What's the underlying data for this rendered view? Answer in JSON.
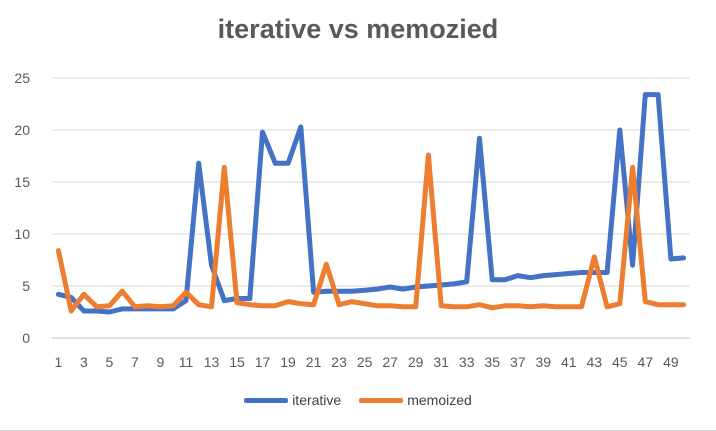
{
  "chart_data": {
    "type": "line",
    "title": "iterative vs memozied",
    "xlabel": "",
    "ylabel": "",
    "ylim": [
      0,
      25
    ],
    "yticks": [
      "0",
      "5",
      "10",
      "15",
      "20",
      "25"
    ],
    "xtick_labels": [
      "1",
      "3",
      "5",
      "7",
      "9",
      "11",
      "13",
      "15",
      "17",
      "19",
      "21",
      "23",
      "25",
      "27",
      "29",
      "31",
      "33",
      "35",
      "37",
      "39",
      "41",
      "43",
      "45",
      "47",
      "49"
    ],
    "grid": true,
    "legend_position": "bottom",
    "x": [
      1,
      2,
      3,
      4,
      5,
      6,
      7,
      8,
      9,
      10,
      11,
      12,
      13,
      14,
      15,
      16,
      17,
      18,
      19,
      20,
      21,
      22,
      23,
      24,
      25,
      26,
      27,
      28,
      29,
      30,
      31,
      32,
      33,
      34,
      35,
      36,
      37,
      38,
      39,
      40,
      41,
      42,
      43,
      44,
      45,
      46,
      47,
      48,
      49,
      50
    ],
    "series": [
      {
        "name": "iterative",
        "color": "#4472c4",
        "values": [
          4.2,
          3.9,
          2.6,
          2.6,
          2.5,
          2.8,
          2.8,
          2.8,
          2.8,
          2.8,
          3.6,
          16.8,
          7.0,
          3.6,
          3.8,
          3.8,
          19.8,
          16.8,
          16.8,
          20.3,
          4.4,
          4.5,
          4.5,
          4.5,
          4.6,
          4.7,
          4.9,
          4.7,
          4.9,
          5.0,
          5.1,
          5.2,
          5.4,
          19.2,
          5.6,
          5.6,
          6.0,
          5.8,
          6.0,
          6.1,
          6.2,
          6.3,
          6.3,
          6.3,
          20.0,
          7.0,
          23.4,
          23.4,
          7.6,
          7.7
        ]
      },
      {
        "name": "memoized",
        "color": "#ed7d31",
        "values": [
          8.4,
          2.6,
          4.2,
          3.0,
          3.1,
          4.5,
          3.0,
          3.1,
          3.0,
          3.1,
          4.4,
          3.2,
          3.0,
          16.4,
          3.4,
          3.2,
          3.1,
          3.1,
          3.5,
          3.3,
          3.2,
          7.1,
          3.2,
          3.5,
          3.3,
          3.1,
          3.1,
          3.0,
          3.0,
          17.6,
          3.1,
          3.0,
          3.0,
          3.2,
          2.9,
          3.1,
          3.1,
          3.0,
          3.1,
          3.0,
          3.0,
          3.0,
          7.8,
          3.0,
          3.3,
          16.4,
          3.5,
          3.2,
          3.2,
          3.2
        ]
      }
    ]
  }
}
